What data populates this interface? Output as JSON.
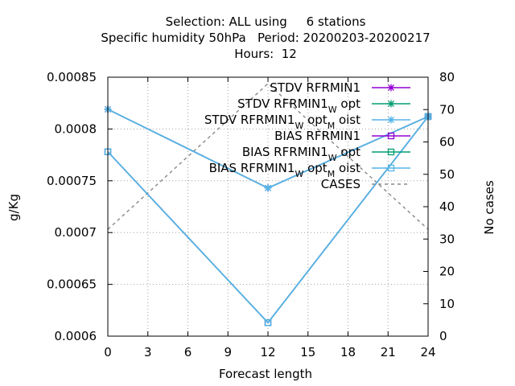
{
  "chart_data": {
    "type": "line",
    "title_lines": [
      "Selection: ALL using     6 stations",
      "Specific humidity 50hPa   Period: 20200203-20200217",
      "Hours:  12"
    ],
    "xlabel": "Forecast length",
    "ylabel": "g/Kg",
    "y2label": "No cases",
    "xlim": [
      0,
      24
    ],
    "ylim": [
      0.0006,
      0.00085
    ],
    "y2lim": [
      0,
      80
    ],
    "x_ticks": [
      0,
      3,
      6,
      9,
      12,
      15,
      18,
      21,
      24
    ],
    "y_ticks": [
      0.0006,
      0.00065,
      0.0007,
      0.00075,
      0.0008,
      0.00085
    ],
    "y_tick_labels": [
      "0.0006",
      "0.00065",
      "0.0007",
      "0.00075",
      "0.0008",
      "0.00085"
    ],
    "y2_ticks": [
      0,
      10,
      20,
      30,
      40,
      50,
      60,
      70,
      80
    ],
    "grid": true,
    "legend_position": "top-right",
    "series": [
      {
        "name": "STDV RFRMIN1",
        "name_parts": [
          [
            "STDV RFRMIN1",
            ""
          ]
        ],
        "axis": "y1",
        "color": "#9400d3",
        "marker": "star",
        "dashed": false,
        "x": [
          0,
          12,
          24
        ],
        "values": [
          0.000819,
          0.000743,
          0.000812
        ]
      },
      {
        "name": "STDV RFRMIN1_W opt",
        "name_parts": [
          [
            "STDV RFRMIN1",
            ""
          ],
          [
            "W",
            "sub"
          ],
          [
            " opt",
            ""
          ]
        ],
        "axis": "y1",
        "color": "#009e73",
        "marker": "star",
        "dashed": false,
        "x": [
          0,
          12,
          24
        ],
        "values": [
          0.000819,
          0.000743,
          0.000812
        ]
      },
      {
        "name": "STDV RFRMIN1_W opt_M oist",
        "name_parts": [
          [
            "STDV RFRMIN1",
            ""
          ],
          [
            "W",
            "sub"
          ],
          [
            " opt",
            ""
          ],
          [
            "M",
            "sub"
          ],
          [
            " oist",
            ""
          ]
        ],
        "axis": "y1",
        "color": "#56b4e9",
        "marker": "star",
        "dashed": false,
        "x": [
          0,
          12,
          24
        ],
        "values": [
          0.000819,
          0.000743,
          0.000812
        ]
      },
      {
        "name": "BIAS RFRMIN1",
        "name_parts": [
          [
            "BIAS RFRMIN1",
            ""
          ]
        ],
        "axis": "y1",
        "color": "#9400d3",
        "marker": "square",
        "dashed": false,
        "x": [
          0,
          12,
          24
        ],
        "values": [
          0.000778,
          0.000613,
          0.000812
        ]
      },
      {
        "name": "BIAS RFRMIN1_W opt",
        "name_parts": [
          [
            "BIAS RFRMIN1",
            ""
          ],
          [
            "W",
            "sub"
          ],
          [
            " opt",
            ""
          ]
        ],
        "axis": "y1",
        "color": "#009e73",
        "marker": "square",
        "dashed": false,
        "x": [
          0,
          12,
          24
        ],
        "values": [
          0.000778,
          0.000613,
          0.000812
        ]
      },
      {
        "name": "BIAS RFRMIN1_W opt_M oist",
        "name_parts": [
          [
            "BIAS RFRMIN1",
            ""
          ],
          [
            "W",
            "sub"
          ],
          [
            " opt",
            ""
          ],
          [
            "M",
            "sub"
          ],
          [
            " oist",
            ""
          ]
        ],
        "axis": "y1",
        "color": "#56b4e9",
        "marker": "square",
        "dashed": false,
        "x": [
          0,
          12,
          24
        ],
        "values": [
          0.000778,
          0.000613,
          0.000812
        ]
      },
      {
        "name": "CASES",
        "name_parts": [
          [
            "CASES",
            ""
          ]
        ],
        "axis": "y2",
        "color": "#888888",
        "marker": "none",
        "dashed": true,
        "x": [
          0,
          12,
          24
        ],
        "values": [
          33,
          78,
          33
        ]
      }
    ]
  }
}
